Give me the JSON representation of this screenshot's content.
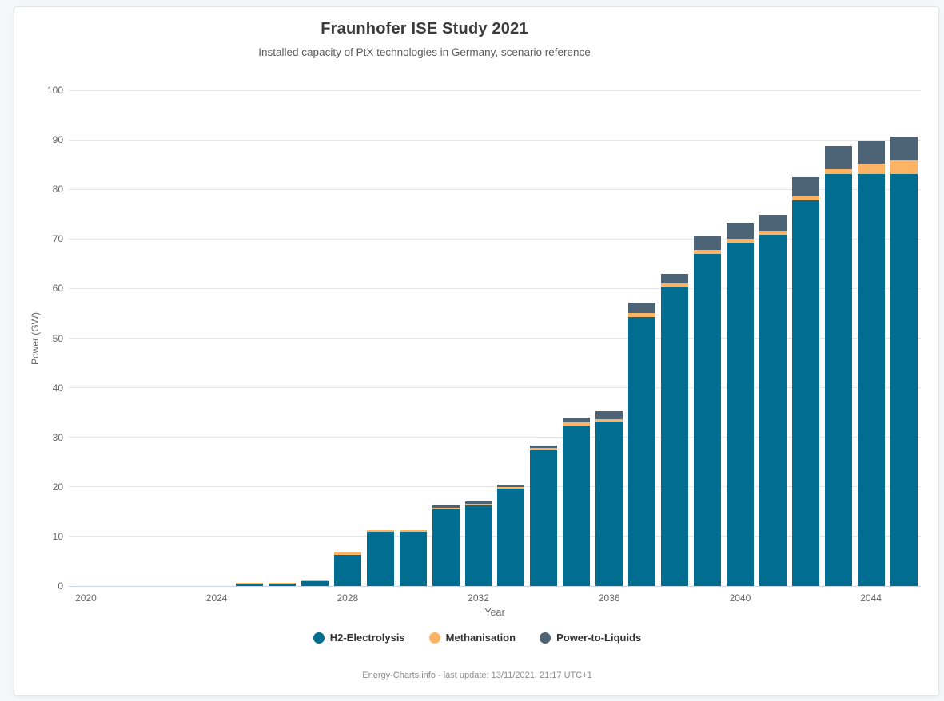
{
  "header": {
    "title": "Fraunhofer ISE Study 2021",
    "subtitle": "Installed capacity of PtX technologies in Germany, scenario reference"
  },
  "footer": {
    "credit": "Energy-Charts.info - last update: 13/11/2021, 21:17 UTC+1"
  },
  "colors": {
    "h2_electrolysis": "#006d91",
    "methanisation": "#fdb364",
    "power_to_liquids": "#4c6475",
    "gridline": "#e7e7e7",
    "axis_line": "#ccd6eb",
    "tick_label": "#666666"
  },
  "chart_data": {
    "type": "bar",
    "stacked": true,
    "title": "Fraunhofer ISE Study 2021",
    "subtitle": "Installed capacity of PtX technologies in Germany, scenario reference",
    "xlabel": "Year",
    "ylabel": "Power (GW)",
    "ylim": [
      0,
      100
    ],
    "y_ticks": [
      0,
      10,
      20,
      30,
      40,
      50,
      60,
      70,
      80,
      90,
      100
    ],
    "x_tick_labels": [
      2020,
      2024,
      2028,
      2032,
      2036,
      2040,
      2044
    ],
    "x_range": [
      2019.5,
      2045.5
    ],
    "grid": "horizontal-only",
    "legend_position": "bottom",
    "categories": [
      2020,
      2021,
      2022,
      2023,
      2024,
      2025,
      2026,
      2027,
      2028,
      2029,
      2030,
      2031,
      2032,
      2033,
      2034,
      2035,
      2036,
      2037,
      2038,
      2039,
      2040,
      2041,
      2042,
      2043,
      2044,
      2045
    ],
    "series": [
      {
        "name": "H2-Electrolysis",
        "color": "#006d91",
        "values": [
          0,
          0,
          0,
          0,
          0,
          0.5,
          0.5,
          0.9,
          6.3,
          10.9,
          10.9,
          15.4,
          16.2,
          19.6,
          27.3,
          32.4,
          33.1,
          54.3,
          60.2,
          67.0,
          69.3,
          70.9,
          77.7,
          83.1,
          83.1,
          83.1
        ]
      },
      {
        "name": "Methanisation",
        "color": "#fdb364",
        "values": [
          0,
          0,
          0,
          0,
          0,
          0.2,
          0.2,
          0.3,
          0.4,
          0.4,
          0.4,
          0.4,
          0.4,
          0.4,
          0.6,
          0.6,
          0.6,
          0.8,
          0.8,
          0.8,
          0.8,
          0.8,
          0.9,
          0.9,
          2.1,
          2.7
        ]
      },
      {
        "name": "Power-to-Liquids",
        "color": "#4c6475",
        "values": [
          0,
          0,
          0,
          0,
          0,
          0,
          0,
          0,
          0,
          0,
          0,
          0.5,
          0.5,
          0.5,
          0.5,
          1.0,
          1.6,
          2.1,
          2.0,
          2.7,
          3.1,
          3.2,
          3.9,
          4.7,
          4.6,
          4.8
        ]
      }
    ]
  }
}
